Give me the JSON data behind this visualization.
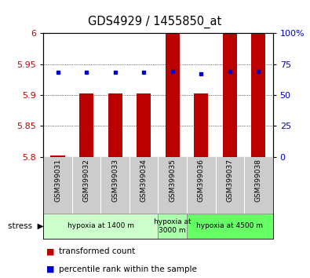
{
  "title": "GDS4929 / 1455850_at",
  "samples": [
    "GSM399031",
    "GSM399032",
    "GSM399033",
    "GSM399034",
    "GSM399035",
    "GSM399036",
    "GSM399037",
    "GSM399038"
  ],
  "bar_bottom": 5.8,
  "bar_tops": [
    5.802,
    5.902,
    5.902,
    5.902,
    6.0,
    5.902,
    6.0,
    6.0
  ],
  "percentile_values": [
    5.937,
    5.937,
    5.937,
    5.937,
    5.938,
    5.935,
    5.938,
    5.938
  ],
  "bar_color": "#bb0000",
  "blue_color": "#0000cc",
  "ylim": [
    5.8,
    6.0
  ],
  "yticks": [
    5.8,
    5.85,
    5.9,
    5.95,
    6.0
  ],
  "ytick_labels": [
    "5.8",
    "5.85",
    "5.9",
    "5.95",
    "6"
  ],
  "right_yticks": [
    0,
    25,
    50,
    75,
    100
  ],
  "right_ytick_labels": [
    "0",
    "25",
    "50",
    "75",
    "100%"
  ],
  "groups": [
    {
      "label": "hypoxia at 1400 m",
      "start": 0,
      "end": 4,
      "color": "#ccffcc"
    },
    {
      "label": "hypoxia at\n3000 m",
      "start": 4,
      "end": 5,
      "color": "#aaffaa"
    },
    {
      "label": "hypoxia at 4500 m",
      "start": 5,
      "end": 8,
      "color": "#66ff66"
    }
  ],
  "stress_label": "stress",
  "legend_red": "transformed count",
  "legend_blue": "percentile rank within the sample",
  "bar_width": 0.5,
  "tick_label_color_left": "#cc0000",
  "tick_label_color_right": "#0000cc",
  "sample_box_color": "#cccccc",
  "group_box_border": "#888888"
}
